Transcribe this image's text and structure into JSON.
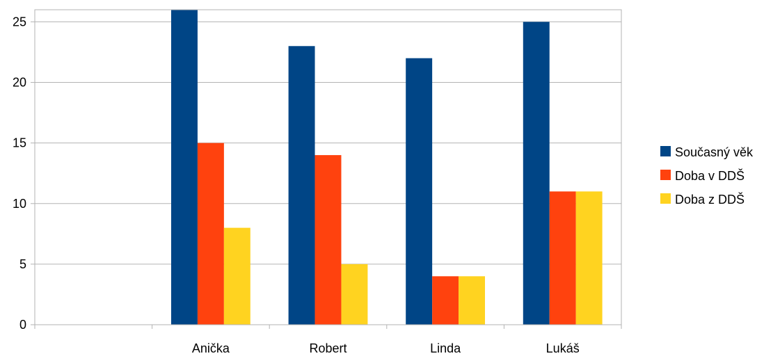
{
  "chart_data": {
    "type": "bar",
    "categories": [
      "",
      "Anička",
      "Robert",
      "Linda",
      "Lukáš"
    ],
    "series": [
      {
        "name": "Současný věk",
        "values": [
          null,
          26,
          23,
          22,
          25
        ],
        "color": "#004586"
      },
      {
        "name": "Doba v DDŠ",
        "values": [
          null,
          15,
          14,
          4,
          11
        ],
        "color": "#FF420E"
      },
      {
        "name": "Doba z DDŠ",
        "values": [
          null,
          8,
          5,
          4,
          11
        ],
        "color": "#FFD320"
      }
    ],
    "yticks": [
      0,
      5,
      10,
      15,
      20,
      25
    ],
    "ylim": [
      0,
      26
    ],
    "grid": true,
    "legend_position": "right",
    "title": "",
    "xlabel": "",
    "ylabel": ""
  }
}
